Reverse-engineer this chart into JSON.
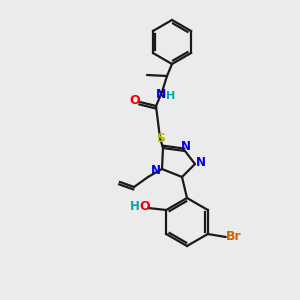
{
  "background_color": "#ebebeb",
  "bond_color": "#1a1a1a",
  "atom_colors": {
    "N": "#0000ee",
    "O": "#ee0000",
    "S": "#bbbb00",
    "Br": "#cc6600",
    "H_amide": "#00aaaa",
    "H_phenol": "#00aaaa"
  },
  "figsize": [
    3.0,
    3.0
  ],
  "dpi": 100
}
